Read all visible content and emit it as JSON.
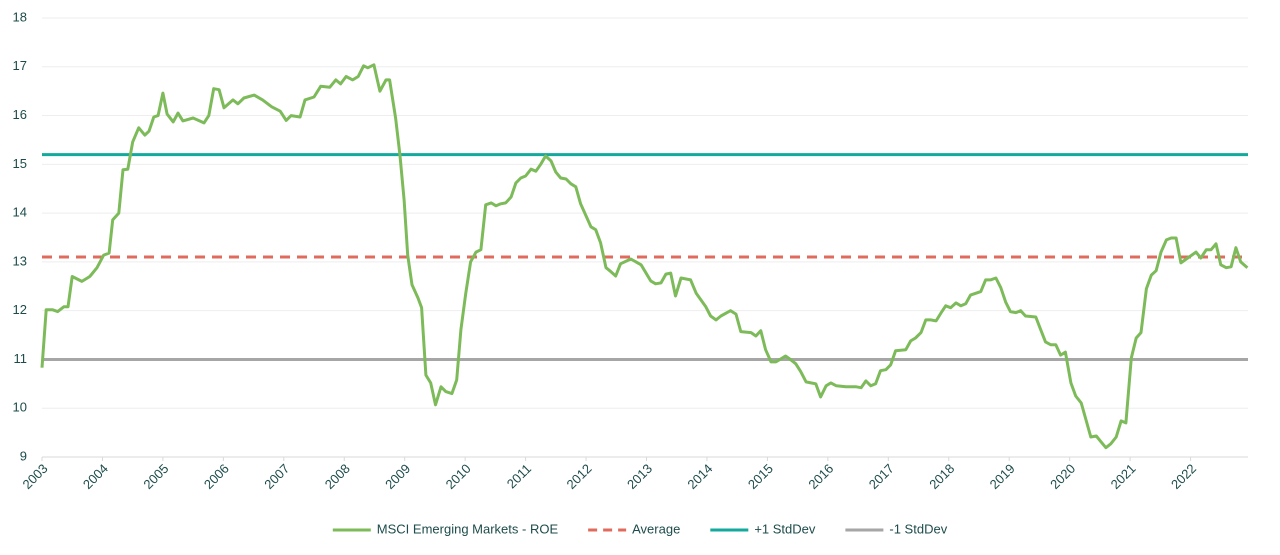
{
  "chart_data": {
    "type": "line",
    "x": [
      2003.0,
      2003.07,
      2003.17,
      2003.26,
      2003.36,
      2003.43,
      2003.5,
      2003.66,
      2003.79,
      2003.91,
      2004.02,
      2004.11,
      2004.17,
      2004.27,
      2004.34,
      2004.42,
      2004.5,
      2004.6,
      2004.7,
      2004.77,
      2004.85,
      2004.92,
      2005.0,
      2005.07,
      2005.17,
      2005.25,
      2005.33,
      2005.5,
      2005.68,
      2005.76,
      2005.84,
      2005.93,
      2006.01,
      2006.16,
      2006.24,
      2006.34,
      2006.51,
      2006.65,
      2006.8,
      2006.94,
      2007.04,
      2007.12,
      2007.27,
      2007.35,
      2007.5,
      2007.61,
      2007.76,
      2007.86,
      2007.94,
      2008.03,
      2008.14,
      2008.23,
      2008.32,
      2008.39,
      2008.49,
      2008.59,
      2008.69,
      2008.75,
      2008.85,
      2008.92,
      2008.99,
      2009.05,
      2009.12,
      2009.22,
      2009.28,
      2009.35,
      2009.43,
      2009.51,
      2009.6,
      2009.68,
      2009.78,
      2009.86,
      2009.93,
      2010.01,
      2010.09,
      2010.18,
      2010.26,
      2010.34,
      2010.43,
      2010.51,
      2010.59,
      2010.67,
      2010.76,
      2010.84,
      2010.92,
      2011.0,
      2011.09,
      2011.17,
      2011.25,
      2011.33,
      2011.42,
      2011.5,
      2011.58,
      2011.67,
      2011.75,
      2011.83,
      2011.91,
      2012.08,
      2012.16,
      2012.24,
      2012.33,
      2012.41,
      2012.49,
      2012.57,
      2012.74,
      2012.91,
      2013.07,
      2013.15,
      2013.24,
      2013.32,
      2013.4,
      2013.48,
      2013.57,
      2013.73,
      2013.82,
      2013.9,
      2013.98,
      2014.06,
      2014.15,
      2014.23,
      2014.39,
      2014.48,
      2014.56,
      2014.73,
      2014.81,
      2014.89,
      2014.97,
      2015.06,
      2015.14,
      2015.22,
      2015.3,
      2015.39,
      2015.47,
      2015.55,
      2015.64,
      2015.72,
      2015.8,
      2015.88,
      2015.97,
      2016.05,
      2016.14,
      2016.3,
      2016.47,
      2016.55,
      2016.63,
      2016.71,
      2016.79,
      2016.87,
      2016.96,
      2017.04,
      2017.12,
      2017.29,
      2017.37,
      2017.45,
      2017.54,
      2017.62,
      2017.7,
      2017.79,
      2017.87,
      2017.95,
      2018.03,
      2018.12,
      2018.2,
      2018.28,
      2018.36,
      2018.53,
      2018.61,
      2018.69,
      2018.78,
      2018.86,
      2018.94,
      2019.02,
      2019.11,
      2019.19,
      2019.27,
      2019.44,
      2019.52,
      2019.6,
      2019.69,
      2019.77,
      2019.85,
      2019.93,
      2020.02,
      2020.1,
      2020.19,
      2020.27,
      2020.35,
      2020.44,
      2020.52,
      2020.6,
      2020.68,
      2020.77,
      2020.85,
      2020.93,
      2021.02,
      2021.1,
      2021.18,
      2021.27,
      2021.35,
      2021.43,
      2021.51,
      2021.6,
      2021.68,
      2021.76,
      2021.84,
      2021.93,
      2022.09,
      2022.17,
      2022.26,
      2022.34,
      2022.42,
      2022.5,
      2022.59,
      2022.67,
      2022.75,
      2022.83,
      2022.94
    ],
    "series": [
      {
        "name": "MSCI Emerging Markets - ROE",
        "color": "#7dbb5a",
        "values": [
          10.83,
          12.02,
          12.02,
          11.98,
          12.08,
          12.08,
          12.7,
          12.6,
          12.7,
          12.88,
          13.14,
          13.18,
          13.86,
          14.0,
          14.89,
          14.9,
          15.46,
          15.75,
          15.6,
          15.68,
          15.97,
          16.0,
          16.46,
          16.03,
          15.87,
          16.05,
          15.89,
          15.95,
          15.85,
          16.0,
          16.55,
          16.53,
          16.16,
          16.32,
          16.24,
          16.36,
          16.42,
          16.32,
          16.18,
          16.09,
          15.9,
          16.0,
          15.97,
          16.32,
          16.38,
          16.6,
          16.58,
          16.73,
          16.65,
          16.8,
          16.73,
          16.8,
          17.02,
          16.98,
          17.04,
          16.5,
          16.73,
          16.73,
          15.95,
          15.2,
          14.27,
          13.14,
          12.53,
          12.26,
          12.06,
          10.68,
          10.52,
          10.07,
          10.44,
          10.34,
          10.3,
          10.58,
          11.61,
          12.36,
          13.0,
          13.2,
          13.25,
          14.17,
          14.21,
          14.15,
          14.19,
          14.21,
          14.33,
          14.62,
          14.72,
          14.76,
          14.9,
          14.86,
          15.0,
          15.17,
          15.07,
          14.84,
          14.72,
          14.7,
          14.6,
          14.54,
          14.19,
          13.72,
          13.66,
          13.39,
          12.88,
          12.8,
          12.71,
          12.96,
          13.06,
          12.94,
          12.61,
          12.55,
          12.57,
          12.75,
          12.77,
          12.3,
          12.67,
          12.63,
          12.36,
          12.22,
          12.08,
          11.89,
          11.81,
          11.89,
          12.0,
          11.93,
          11.57,
          11.55,
          11.48,
          11.59,
          11.2,
          10.95,
          10.95,
          11.01,
          11.07,
          10.99,
          10.91,
          10.75,
          10.54,
          10.52,
          10.5,
          10.23,
          10.46,
          10.52,
          10.46,
          10.44,
          10.44,
          10.42,
          10.56,
          10.46,
          10.5,
          10.77,
          10.79,
          10.89,
          11.18,
          11.2,
          11.38,
          11.44,
          11.55,
          11.81,
          11.81,
          11.79,
          11.95,
          12.1,
          12.06,
          12.16,
          12.1,
          12.14,
          12.32,
          12.39,
          12.63,
          12.63,
          12.67,
          12.47,
          12.18,
          11.98,
          11.96,
          12.0,
          11.89,
          11.87,
          11.61,
          11.36,
          11.3,
          11.3,
          11.09,
          11.15,
          10.52,
          10.25,
          10.11,
          9.76,
          9.41,
          9.43,
          9.31,
          9.19,
          9.27,
          9.41,
          9.74,
          9.7,
          11.03,
          11.44,
          11.55,
          12.45,
          12.73,
          12.82,
          13.2,
          13.45,
          13.49,
          13.49,
          12.98,
          13.06,
          13.2,
          13.08,
          13.25,
          13.25,
          13.37,
          12.94,
          12.88,
          12.9,
          13.29,
          13.0,
          12.88
        ]
      }
    ],
    "hlines": [
      {
        "name": "Average",
        "color": "#e06b5c",
        "value": 13.1,
        "dashed": true
      },
      {
        "name": "+1 StdDev",
        "color": "#13a99d",
        "value": 15.2,
        "dashed": false
      },
      {
        "name": "-1 StdDev",
        "color": "#a6a6a6",
        "value": 11.0,
        "dashed": false
      }
    ],
    "xlim": [
      2003,
      2022.95
    ],
    "xticks": [
      2003,
      2004,
      2005,
      2006,
      2007,
      2008,
      2009,
      2010,
      2011,
      2012,
      2013,
      2014,
      2015,
      2016,
      2017,
      2018,
      2019,
      2020,
      2021,
      2022
    ],
    "ylim": [
      9,
      18
    ],
    "yticks": [
      9,
      10,
      11,
      12,
      13,
      14,
      15,
      16,
      17,
      18
    ],
    "grid": true,
    "legend": "bottom"
  }
}
